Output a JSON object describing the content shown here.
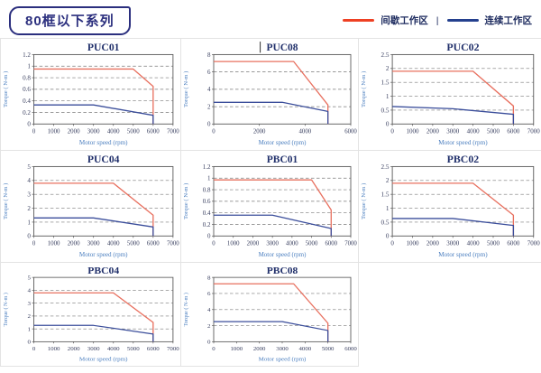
{
  "header": {
    "title": "80框以下系列",
    "legend": {
      "intermittent_label": "间歇工作区",
      "separator": "|",
      "continuous_label": "连续工作区"
    }
  },
  "colors": {
    "badge_navy": "#2b2f7e",
    "legend_red": "#ee4023",
    "legend_blue": "#24408e",
    "line_red": "#e8705f",
    "line_blue": "#3b4e9b",
    "grid_line": "#7a7a7a",
    "plot_border": "#5c5c5c",
    "tick_text": "#3a4060",
    "title_text": "#21306b",
    "axis_label_text": "#4a7ebf",
    "cell_border": "#e3e3e3"
  },
  "chart_data": [
    {
      "type": "line",
      "title": "PUC01",
      "caret": false,
      "xlabel": "Motor speed (rpm)",
      "ylabel": "Torque ( N-m )",
      "xlim": [
        0,
        7000
      ],
      "xtick_step": 1000,
      "ylim": [
        0,
        1.2
      ],
      "ytick_step": 0.2,
      "grid": "dashed-horizontal",
      "legend_position": "none",
      "series": [
        {
          "name": "间歇工作区",
          "color_key": "line_red",
          "points": [
            [
              0,
              0.95
            ],
            [
              5000,
              0.95
            ],
            [
              6000,
              0.65
            ],
            [
              6000,
              0
            ]
          ]
        },
        {
          "name": "连续工作区",
          "color_key": "line_blue",
          "points": [
            [
              0,
              0.33
            ],
            [
              3000,
              0.33
            ],
            [
              6000,
              0.15
            ],
            [
              6000,
              0
            ]
          ]
        }
      ]
    },
    {
      "type": "line",
      "title": "PUC08",
      "caret": true,
      "xlabel": "Motor speed (rpm)",
      "ylabel": "Torque ( N-m )",
      "xlim": [
        0,
        6000
      ],
      "xtick_step": 2000,
      "ylim": [
        0,
        8
      ],
      "ytick_step": 2,
      "grid": "dashed-horizontal",
      "legend_position": "none",
      "series": [
        {
          "name": "间歇工作区",
          "color_key": "line_red",
          "points": [
            [
              0,
              7.2
            ],
            [
              3500,
              7.2
            ],
            [
              5000,
              2.2
            ],
            [
              5000,
              0
            ]
          ]
        },
        {
          "name": "连续工作区",
          "color_key": "line_blue",
          "points": [
            [
              0,
              2.5
            ],
            [
              3000,
              2.5
            ],
            [
              5000,
              1.45
            ],
            [
              5000,
              0
            ]
          ]
        }
      ]
    },
    {
      "type": "line",
      "title": "PUC02",
      "caret": false,
      "xlabel": "Motor speed (rpm)",
      "ylabel": "Torque ( N-m )",
      "xlim": [
        0,
        7000
      ],
      "xtick_step": 1000,
      "ylim": [
        0,
        2.5
      ],
      "ytick_step": 0.5,
      "grid": "dashed-horizontal",
      "legend_position": "none",
      "series": [
        {
          "name": "间歇工作区",
          "color_key": "line_red",
          "points": [
            [
              0,
              1.9
            ],
            [
              4000,
              1.9
            ],
            [
              6000,
              0.65
            ],
            [
              6000,
              0
            ]
          ]
        },
        {
          "name": "连续工作区",
          "color_key": "line_blue",
          "points": [
            [
              0,
              0.63
            ],
            [
              3000,
              0.55
            ],
            [
              6000,
              0.35
            ],
            [
              6000,
              0
            ]
          ]
        }
      ]
    },
    {
      "type": "line",
      "title": "PUC04",
      "caret": false,
      "xlabel": "Motor speed (rpm)",
      "ylabel": "Torque ( N-m )",
      "xlim": [
        0,
        7000
      ],
      "xtick_step": 1000,
      "ylim": [
        0,
        5
      ],
      "ytick_step": 1,
      "grid": "dashed-horizontal",
      "legend_position": "none",
      "series": [
        {
          "name": "间歇工作区",
          "color_key": "line_red",
          "points": [
            [
              0,
              3.8
            ],
            [
              4000,
              3.8
            ],
            [
              6000,
              1.5
            ],
            [
              6000,
              0
            ]
          ]
        },
        {
          "name": "连续工作区",
          "color_key": "line_blue",
          "points": [
            [
              0,
              1.3
            ],
            [
              3000,
              1.3
            ],
            [
              6000,
              0.65
            ],
            [
              6000,
              0
            ]
          ]
        }
      ]
    },
    {
      "type": "line",
      "title": "PBC01",
      "caret": false,
      "xlabel": "Motor speed (rpm)",
      "ylabel": "Torque ( N-m )",
      "xlim": [
        0,
        7000
      ],
      "xtick_step": 1000,
      "ylim": [
        0,
        1.2
      ],
      "ytick_step": 0.2,
      "grid": "dashed-horizontal",
      "legend_position": "none",
      "series": [
        {
          "name": "间歇工作区",
          "color_key": "line_red",
          "points": [
            [
              0,
              0.97
            ],
            [
              5000,
              0.97
            ],
            [
              6000,
              0.45
            ],
            [
              6000,
              0
            ]
          ]
        },
        {
          "name": "连续工作区",
          "color_key": "line_blue",
          "points": [
            [
              0,
              0.36
            ],
            [
              3000,
              0.36
            ],
            [
              6000,
              0.13
            ],
            [
              6000,
              0
            ]
          ]
        }
      ]
    },
    {
      "type": "line",
      "title": "PBC02",
      "caret": false,
      "xlabel": "Motor speed (rpm)",
      "ylabel": "Torque ( N-m )",
      "xlim": [
        0,
        7000
      ],
      "xtick_step": 1000,
      "ylim": [
        0,
        2.5
      ],
      "ytick_step": 0.5,
      "grid": "dashed-horizontal",
      "legend_position": "none",
      "series": [
        {
          "name": "间歇工作区",
          "color_key": "line_red",
          "points": [
            [
              0,
              1.9
            ],
            [
              4000,
              1.9
            ],
            [
              6000,
              0.75
            ],
            [
              6000,
              0
            ]
          ]
        },
        {
          "name": "连续工作区",
          "color_key": "line_blue",
          "points": [
            [
              0,
              0.63
            ],
            [
              3000,
              0.63
            ],
            [
              6000,
              0.38
            ],
            [
              6000,
              0
            ]
          ]
        }
      ]
    },
    {
      "type": "line",
      "title": "PBC04",
      "caret": false,
      "xlabel": "Motor speed (rpm)",
      "ylabel": "Torque ( N-m )",
      "xlim": [
        0,
        7000
      ],
      "xtick_step": 1000,
      "ylim": [
        0,
        5
      ],
      "ytick_step": 1,
      "grid": "dashed-horizontal",
      "legend_position": "none",
      "series": [
        {
          "name": "间歇工作区",
          "color_key": "line_red",
          "points": [
            [
              0,
              3.8
            ],
            [
              4000,
              3.8
            ],
            [
              6000,
              1.5
            ],
            [
              6000,
              0
            ]
          ]
        },
        {
          "name": "连续工作区",
          "color_key": "line_blue",
          "points": [
            [
              0,
              1.27
            ],
            [
              3000,
              1.27
            ],
            [
              6000,
              0.6
            ],
            [
              6000,
              0
            ]
          ]
        }
      ]
    },
    {
      "type": "line",
      "title": "PBC08",
      "caret": false,
      "xlabel": "Motor speed (rpm)",
      "ylabel": "Torque ( N-m )",
      "xlim": [
        0,
        6000
      ],
      "xtick_step": 1000,
      "ylim": [
        0,
        8
      ],
      "ytick_step": 2,
      "grid": "dashed-horizontal",
      "legend_position": "none",
      "series": [
        {
          "name": "间歇工作区",
          "color_key": "line_red",
          "points": [
            [
              0,
              7.2
            ],
            [
              3500,
              7.2
            ],
            [
              5000,
              2.3
            ],
            [
              5000,
              0
            ]
          ]
        },
        {
          "name": "连续工作区",
          "color_key": "line_blue",
          "points": [
            [
              0,
              2.5
            ],
            [
              3000,
              2.5
            ],
            [
              5000,
              1.4
            ],
            [
              5000,
              0
            ]
          ]
        }
      ]
    }
  ]
}
